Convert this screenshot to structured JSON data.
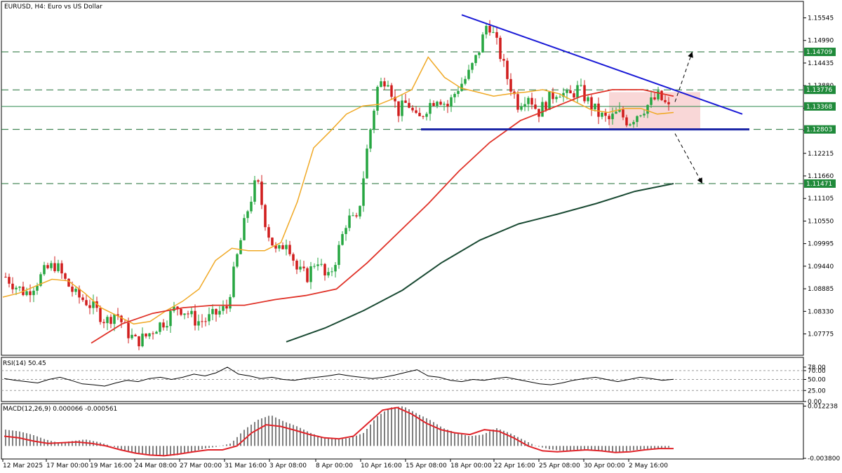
{
  "colors": {
    "bull": "#26a641",
    "bear": "#d01c1c",
    "ma_fast": "#f0a926",
    "ma_mid": "#e03228",
    "ma_slow": "#1a4a33",
    "trend": "#1a1ad6",
    "support": "#1a24a6",
    "level_line": "#1d6e33",
    "level_box": "#1f8a3a",
    "current_line": "#2d8a4e",
    "zone": "#f7c6c6",
    "macd_signal": "#e0242a",
    "rsi": "#000000",
    "frame": "#000000"
  },
  "chart_data": [
    {
      "type": "candlestick",
      "title": "EURUSD, H4:  Euro vs US Dollar",
      "ylim": [
        1.0725,
        1.1595
      ],
      "yticks": [
        1.15545,
        1.1499,
        1.14435,
        1.1388,
        1.13325,
        1.1277,
        1.12215,
        1.1166,
        1.11105,
        1.1055,
        1.09995,
        1.0944,
        1.08885,
        1.0833,
        1.07775
      ],
      "ytick_labels": [
        "1.15545",
        "1.14990",
        "1.14435",
        "1.13880",
        "1.13325",
        "1.12770",
        "1.12215",
        "1.11660",
        "1.11105",
        "1.10550",
        "1.09995",
        "1.09440",
        "1.08885",
        "1.08330",
        "1.07775"
      ],
      "xticks": [
        "12 Mar 2025",
        "17 Mar 00:00",
        "19 Mar 16:00",
        "24 Mar 08:00",
        "27 Mar 00:00",
        "31 Mar 16:00",
        "3 Apr 08:00",
        "8 Apr 00:00",
        "10 Apr 16:00",
        "15 Apr 08:00",
        "18 Apr 00:00",
        "22 Apr 16:00",
        "25 Apr 08:00",
        "30 Apr 00:00",
        "2 May 16:00"
      ],
      "levels": [
        {
          "value": 1.14709,
          "label": "1.14709",
          "style": "dashed"
        },
        {
          "value": 1.13776,
          "label": "1.13776",
          "style": "dashed"
        },
        {
          "value": 1.13368,
          "label": "1.13368",
          "style": "solid"
        },
        {
          "value": 1.12803,
          "label": "1.12803",
          "style": "dashed"
        },
        {
          "value": 1.11471,
          "label": "1.11471",
          "style": "dashed"
        }
      ],
      "close_path": [
        1.0918,
        1.0895,
        1.0878,
        1.0902,
        1.0935,
        1.0948,
        1.0905,
        1.0872,
        1.0858,
        1.0835,
        1.0808,
        1.0832,
        1.0785,
        1.0758,
        1.0772,
        1.0795,
        1.0812,
        1.0845,
        1.0832,
        1.0808,
        1.0812,
        1.0828,
        1.0842,
        1.0962,
        1.1075,
        1.1158,
        1.1035,
        1.0972,
        1.1012,
        1.0935,
        1.0918,
        1.0965,
        1.0905,
        1.0972,
        1.1062,
        1.1052,
        1.1235,
        1.1382,
        1.1412,
        1.1322,
        1.1348,
        1.1298,
        1.1338,
        1.1362,
        1.1338,
        1.1382,
        1.1412,
        1.1465,
        1.1548,
        1.1482,
        1.1402,
        1.1342,
        1.1368,
        1.1322,
        1.1352,
        1.1378,
        1.1358,
        1.1382,
        1.1348,
        1.1318,
        1.1302,
        1.1322,
        1.1298,
        1.1322,
        1.1342,
        1.1362,
        1.1332
      ],
      "ma_fast": [
        1.0868,
        1.0878,
        1.0895,
        1.0912,
        1.0908,
        1.0878,
        1.0842,
        1.0822,
        1.0802,
        1.0808,
        1.0835,
        1.0858,
        1.0888,
        1.0958,
        1.0988,
        1.0982,
        1.0982,
        1.1002,
        1.1102,
        1.1235,
        1.1275,
        1.1318,
        1.1338,
        1.1342,
        1.1358,
        1.1378,
        1.1458,
        1.1408,
        1.1382,
        1.1372,
        1.1362,
        1.1368,
        1.1372,
        1.1378,
        1.1368,
        1.1348,
        1.1328,
        1.1322,
        1.1332,
        1.1332,
        1.1318,
        1.1322
      ],
      "ma_mid": [
        1.0755,
        1.0802,
        1.0828,
        1.0842,
        1.0848,
        1.0848,
        1.0862,
        1.0872,
        1.0888,
        1.0952,
        1.1025,
        1.1098,
        1.1178,
        1.1248,
        1.1302,
        1.1332,
        1.1362,
        1.1378,
        1.1378,
        1.1362
      ],
      "ma_slow": [
        1.0758,
        1.0792,
        1.0835,
        1.0885,
        1.0952,
        1.1008,
        1.1048,
        1.1072,
        1.1098,
        1.1128,
        1.1147
      ]
    },
    {
      "type": "line",
      "title": "RSI(14) 50.45",
      "ylim": [
        0,
        100
      ],
      "ytick_labels": [
        "78.00",
        "70.00",
        "50.00",
        "25.00",
        "0.00"
      ],
      "ytick_values": [
        78,
        70,
        50,
        25,
        0
      ],
      "values": [
        52,
        48,
        45,
        42,
        50,
        55,
        48,
        40,
        38,
        35,
        42,
        48,
        45,
        52,
        55,
        50,
        55,
        62,
        58,
        65,
        78,
        62,
        58,
        52,
        55,
        50,
        48,
        52,
        55,
        58,
        62,
        58,
        55,
        52,
        55,
        60,
        66,
        72,
        58,
        55,
        48,
        45,
        50,
        48,
        52,
        55,
        50,
        45,
        40,
        38,
        42,
        48,
        52,
        55,
        50,
        45,
        50,
        55,
        52,
        48,
        50.45
      ]
    },
    {
      "type": "bar",
      "title": "MACD(12,26,9) 0.000066 -0.000561",
      "ylim": [
        -0.004,
        0.013
      ],
      "ytick_labels": [
        "0.012238",
        "-0.003800"
      ],
      "ytick_values": [
        0.012238,
        -0.0038
      ],
      "histogram": [
        0.005,
        0.0045,
        0.0035,
        0.002,
        0.001,
        0.0015,
        0.002,
        0.0012,
        0.0,
        -0.0015,
        -0.0025,
        -0.003,
        -0.0032,
        -0.0028,
        -0.0018,
        -0.0008,
        -0.0002,
        0.0008,
        0.005,
        0.008,
        0.0095,
        0.0075,
        0.006,
        0.004,
        0.0025,
        0.002,
        0.0025,
        0.004,
        0.009,
        0.0118,
        0.0122,
        0.01,
        0.008,
        0.0055,
        0.004,
        0.003,
        0.0035,
        0.0055,
        0.004,
        0.002,
        0.0,
        -0.001,
        -0.0015,
        -0.0012,
        -0.001,
        -0.0015,
        -0.002,
        -0.0015,
        -0.001,
        -0.0008,
        -0.0005
      ],
      "signal": [
        0.003,
        0.0025,
        0.0015,
        0.0008,
        0.001,
        0.0012,
        0.0008,
        0.0,
        -0.0012,
        -0.0022,
        -0.0028,
        -0.003,
        -0.0025,
        -0.0018,
        -0.0012,
        -0.0012,
        0.0,
        0.004,
        0.0065,
        0.006,
        0.0048,
        0.0035,
        0.0025,
        0.0022,
        0.003,
        0.007,
        0.011,
        0.0118,
        0.0098,
        0.007,
        0.005,
        0.004,
        0.0035,
        0.005,
        0.0045,
        0.0025,
        0.0,
        -0.0015,
        -0.0018,
        -0.0015,
        -0.0012,
        -0.0015,
        -0.002,
        -0.0018,
        -0.0012,
        -0.0008,
        -0.0008
      ]
    }
  ]
}
